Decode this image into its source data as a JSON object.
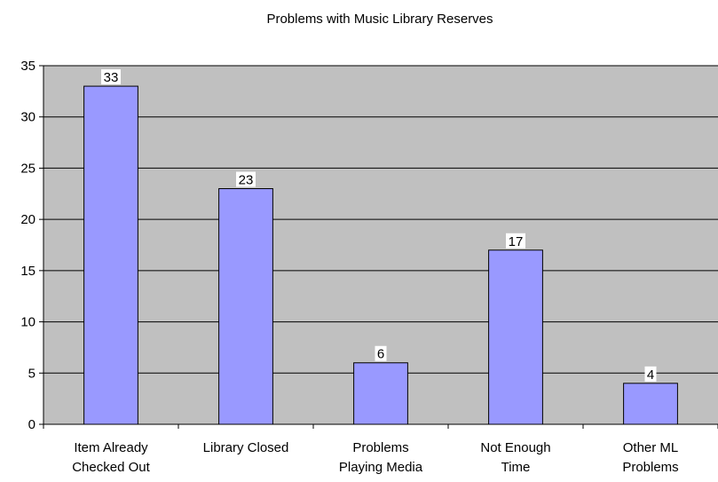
{
  "chart_data": {
    "type": "bar",
    "title": "Problems with Music Library Reserves",
    "xlabel": "",
    "ylabel": "",
    "ylim": [
      0,
      35
    ],
    "yticks": [
      0,
      5,
      10,
      15,
      20,
      25,
      30,
      35
    ],
    "grid": true,
    "legend": "none",
    "categories": [
      [
        "Item Already",
        "Checked Out"
      ],
      [
        "Library Closed"
      ],
      [
        "Problems",
        "Playing Media"
      ],
      [
        "Not Enough",
        "Time"
      ],
      [
        "Other ML",
        "Problems"
      ]
    ],
    "values": [
      33,
      23,
      6,
      17,
      4
    ],
    "data_labels": [
      "33",
      "23",
      "6",
      "17",
      "4"
    ],
    "colors": {
      "bar_fill": "#9999ff",
      "bar_stroke": "#000000",
      "plot_background": "#c0c0c0",
      "gridline": "#000000"
    }
  }
}
